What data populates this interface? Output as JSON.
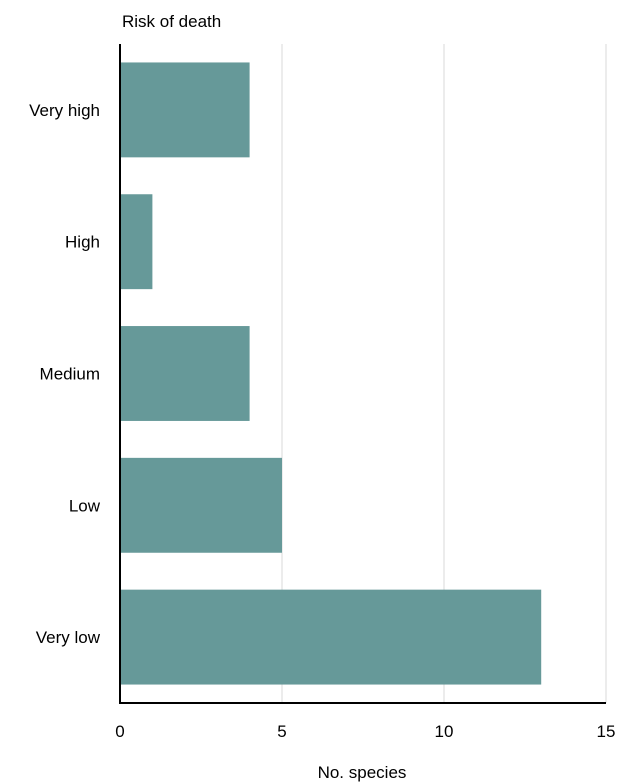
{
  "chart_data": {
    "type": "bar",
    "orientation": "horizontal",
    "title": "",
    "ylabel": "Risk of death",
    "xlabel": "No. species",
    "categories": [
      "Very high",
      "High",
      "Medium",
      "Low",
      "Very low"
    ],
    "values": [
      4,
      1,
      4,
      5,
      13
    ],
    "xlim": [
      0,
      15
    ],
    "xticks": [
      0,
      5,
      10,
      15
    ],
    "grid": "vertical",
    "legend": "none",
    "bar_color": "#669999",
    "grid_color": "#d9d9d9",
    "axis_color": "#000000"
  }
}
